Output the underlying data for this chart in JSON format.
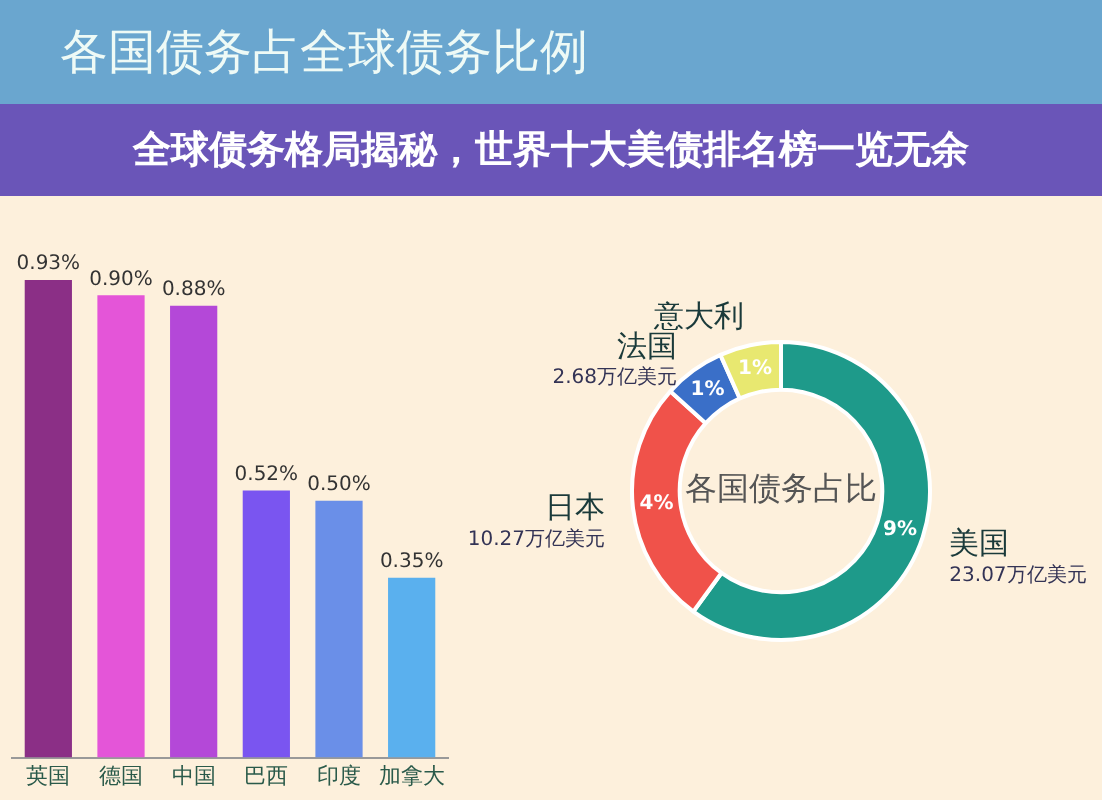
{
  "chart_data": [
    {
      "type": "bar",
      "title": "各国债务占全球债务比例",
      "subtitle": "全球债务格局揭秘，世界十大美债排名榜一览无余",
      "categories": [
        "英国",
        "德国",
        "中国",
        "巴西",
        "印度",
        "加拿大"
      ],
      "values": [
        0.93,
        0.9,
        0.88,
        0.52,
        0.5,
        0.35
      ],
      "colors": [
        "#8b2f86",
        "#e455d8",
        "#b448d8",
        "#7a55f0",
        "#6a8fe8",
        "#5ab0ee"
      ],
      "value_labels": [
        "0.93%",
        "0.90%",
        "0.88%",
        "0.52%",
        "0.50%",
        "0.35%"
      ],
      "legend": false,
      "grid": false
    },
    {
      "type": "donut",
      "title": "各国债务占比",
      "categories": [
        "美国",
        "日本",
        "法国",
        "意大利"
      ],
      "values": [
        9,
        4,
        1,
        1
      ],
      "colors": [
        "#1e9a8a",
        "#f0524a",
        "#3a6fc8",
        "#e8e870"
      ],
      "value_labels": [
        "9%",
        "4%",
        "1%",
        "1%"
      ],
      "annotations": [
        "23.07万亿美元",
        "10.27万亿美元",
        "2.68万亿美元"
      ],
      "legend": false
    }
  ]
}
